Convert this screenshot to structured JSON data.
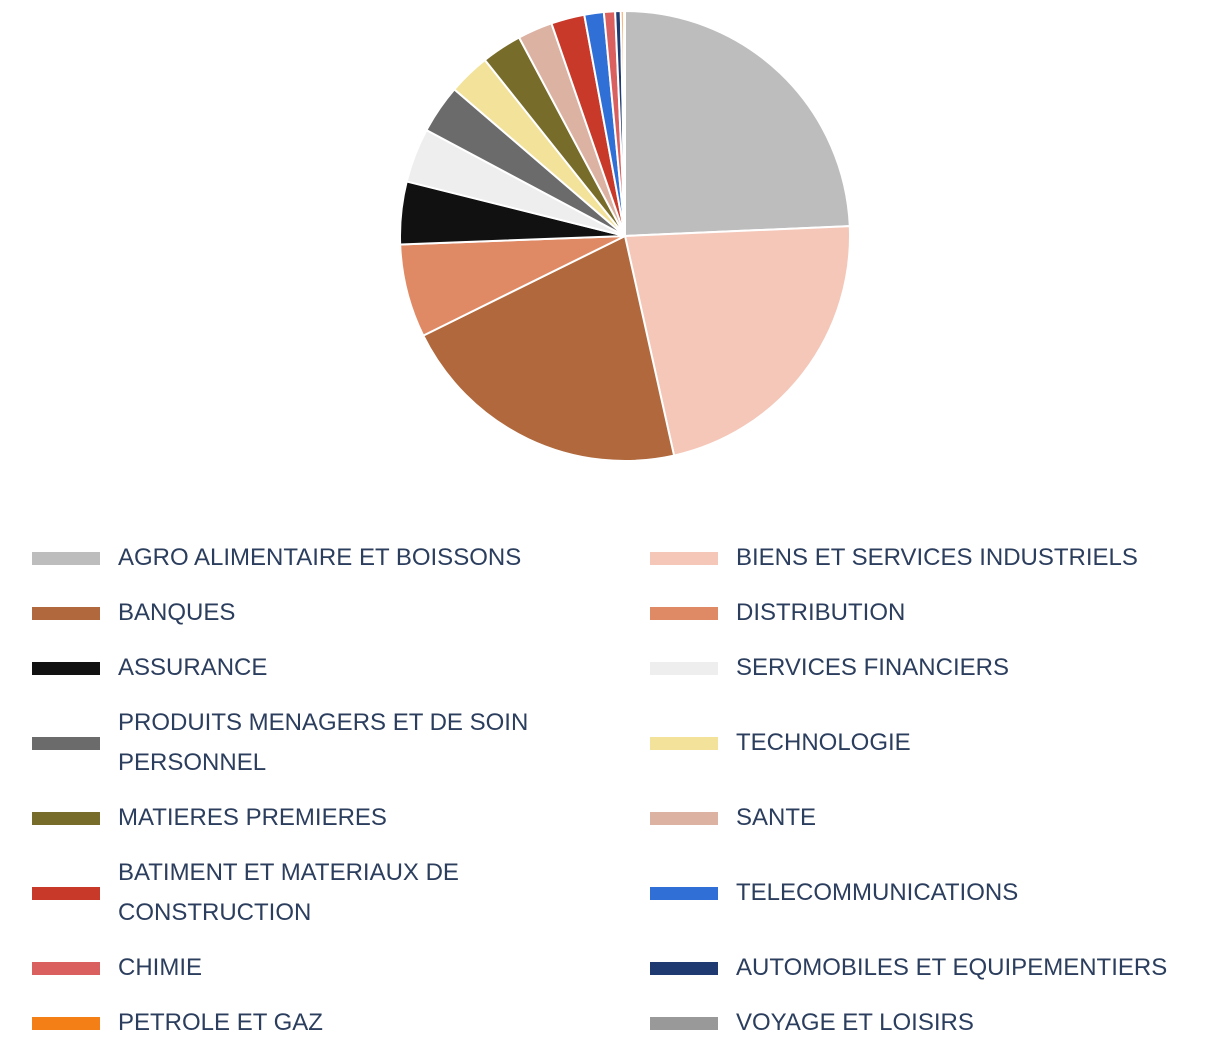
{
  "chart_data": {
    "type": "pie",
    "categories": [
      "AGRO ALIMENTAIRE ET BOISSONS",
      "BIENS ET SERVICES INDUSTRIELS",
      "BANQUES",
      "DISTRIBUTION",
      "ASSURANCE",
      "SERVICES FINANCIERS",
      "PRODUITS MENAGERS ET DE SOIN PERSONNEL",
      "TECHNOLOGIE",
      "MATIERES PREMIERES",
      "SANTE",
      "BATIMENT ET MATERIAUX DE CONSTRUCTION",
      "TELECOMMUNICATIONS",
      "CHIMIE",
      "AUTOMOBILES ET EQUIPEMENTIERS",
      "PETROLE ET GAZ",
      "VOYAGE ET LOISIRS"
    ],
    "values": [
      24.3,
      22.2,
      21.2,
      6.7,
      4.5,
      3.9,
      3.5,
      3.0,
      2.9,
      2.5,
      2.4,
      1.4,
      0.8,
      0.4,
      0.2,
      0.1
    ],
    "colors": [
      "#bdbdbd",
      "#f4c7b8",
      "#b0683c",
      "#e08a65",
      "#111111",
      "#eeeeee",
      "#6b6b6b",
      "#f2e29a",
      "#786c2a",
      "#dcb2a3",
      "#c8392a",
      "#2f6fd6",
      "#d9605f",
      "#1f3a70",
      "#f57f17",
      "#999999"
    ],
    "legend": "bottom"
  }
}
